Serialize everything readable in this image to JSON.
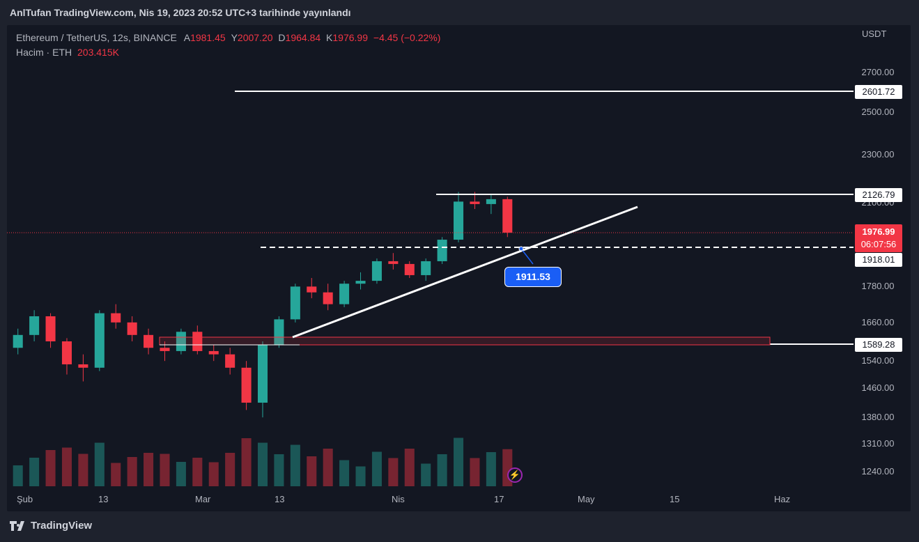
{
  "header": {
    "title": "AnlTufan TradingView.com, Nis 19, 2023 20:52 UTC+3 tarihinde yayınlandı"
  },
  "legend": {
    "symbol": "Ethereum / TetherUS, 12s, BINANCE",
    "open_label": "A",
    "open": "1981.45",
    "high_label": "Y",
    "high": "2007.20",
    "low_label": "D",
    "low": "1964.84",
    "close_label": "K",
    "close": "1976.99",
    "change": "−4.45 (−0.22%)",
    "volume_label": "Hacim · ETH",
    "volume": "203.415K"
  },
  "axis": {
    "unit": "USDT",
    "prices": [
      "2700.00",
      "2500.00",
      "2300.00",
      "2100.00",
      "1780.00",
      "1660.00",
      "1540.00",
      "1460.00",
      "1380.00",
      "1310.00",
      "1240.00"
    ],
    "dates": [
      "Şub",
      "13",
      "Mar",
      "13",
      "Nis",
      "17",
      "May",
      "15",
      "Haz"
    ]
  },
  "tags": {
    "resistance_top": "2601.72",
    "resistance_mid": "2126.79",
    "current_price": "1976.99",
    "countdown": "06:07:56",
    "dashed_level": "1918.01",
    "support": "1589.28"
  },
  "trendline_value": "1911.53",
  "footer": {
    "brand": "TradingView"
  },
  "colors": {
    "bull": "#26a69a",
    "bear": "#f23645",
    "accent": "#1a5ef5",
    "background": "#131722"
  },
  "icons": {
    "logo": "tradingview-logo-icon",
    "bolt": "lightning-icon"
  },
  "chart_data": {
    "type": "candlestick",
    "symbol": "ETHUSDT",
    "timeframe": "12h",
    "y_scale": "log",
    "ylim": [
      1200,
      2800
    ],
    "x": [
      "Şub",
      "13",
      "Mar",
      "13",
      "Nis",
      "17",
      "May",
      "15",
      "Haz"
    ],
    "candles_ohlc_approx": [
      [
        1580,
        1640,
        1560,
        1620
      ],
      [
        1620,
        1700,
        1600,
        1680
      ],
      [
        1680,
        1690,
        1580,
        1600
      ],
      [
        1600,
        1610,
        1500,
        1530
      ],
      [
        1530,
        1560,
        1480,
        1520
      ],
      [
        1520,
        1700,
        1510,
        1690
      ],
      [
        1690,
        1720,
        1640,
        1660
      ],
      [
        1660,
        1680,
        1600,
        1620
      ],
      [
        1620,
        1640,
        1560,
        1580
      ],
      [
        1580,
        1600,
        1540,
        1570
      ],
      [
        1570,
        1640,
        1560,
        1630
      ],
      [
        1630,
        1650,
        1560,
        1570
      ],
      [
        1570,
        1590,
        1540,
        1560
      ],
      [
        1560,
        1580,
        1500,
        1520
      ],
      [
        1520,
        1540,
        1400,
        1420
      ],
      [
        1420,
        1600,
        1380,
        1590
      ],
      [
        1590,
        1680,
        1580,
        1670
      ],
      [
        1670,
        1790,
        1660,
        1780
      ],
      [
        1780,
        1810,
        1740,
        1760
      ],
      [
        1760,
        1790,
        1700,
        1720
      ],
      [
        1720,
        1800,
        1710,
        1790
      ],
      [
        1790,
        1830,
        1770,
        1800
      ],
      [
        1800,
        1880,
        1790,
        1870
      ],
      [
        1870,
        1900,
        1840,
        1860
      ],
      [
        1860,
        1870,
        1810,
        1820
      ],
      [
        1820,
        1880,
        1800,
        1870
      ],
      [
        1870,
        1960,
        1860,
        1950
      ],
      [
        1950,
        2140,
        1940,
        2100
      ],
      [
        2100,
        2140,
        2070,
        2090
      ],
      [
        2090,
        2130,
        2050,
        2110
      ],
      [
        2110,
        2120,
        1960,
        1977
      ]
    ],
    "horizontal_levels": [
      2601.72,
      2126.79,
      1918.01,
      1589.28
    ],
    "trendline": {
      "from": [
        "13 Mar",
        1590
      ],
      "to": [
        "22 Nis",
        2110
      ],
      "marked_value": 1911.53
    },
    "last_price": 1976.99
  }
}
